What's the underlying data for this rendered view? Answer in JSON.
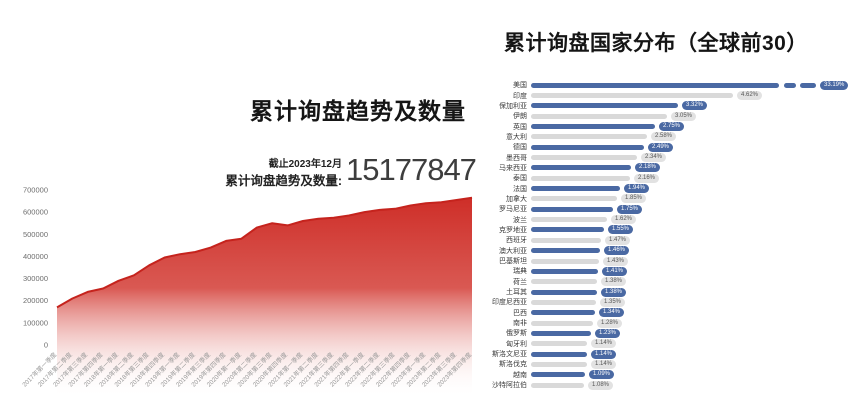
{
  "left_chart": {
    "title": "累计询盘趋势及数量",
    "as_of": "截止2023年12月",
    "total_label": "累计询盘趋势及数量:",
    "total_value": "15177847"
  },
  "right_chart": {
    "title": "累计询盘国家分布（全球前30）"
  },
  "chart_data": [
    {
      "type": "area",
      "title": "累计询盘趋势及数量",
      "x": [
        "2017年第一季度",
        "2017年第二季度",
        "2017年第三季度",
        "2017年第四季度",
        "2018年第一季度",
        "2018年第二季度",
        "2018年第三季度",
        "2018年第四季度",
        "2019年第一季度",
        "2019年第二季度",
        "2019年第三季度",
        "2019年第四季度",
        "2020年第一季度",
        "2020年第二季度",
        "2020年第三季度",
        "2020年第四季度",
        "2021年第一季度",
        "2021年第二季度",
        "2021年第三季度",
        "2021年第四季度",
        "2022年第一季度",
        "2022年第二季度",
        "2022年第三季度",
        "2022年第四季度",
        "2023年第一季度",
        "2023年第二季度",
        "2023年第三季度",
        "2023年第四季度"
      ],
      "values": [
        170000,
        210000,
        240000,
        255000,
        290000,
        315000,
        360000,
        395000,
        410000,
        420000,
        440000,
        470000,
        480000,
        530000,
        550000,
        540000,
        560000,
        570000,
        575000,
        585000,
        600000,
        610000,
        615000,
        630000,
        640000,
        645000,
        655000,
        665000
      ],
      "ylim": [
        0,
        700000
      ],
      "yticks": [
        0,
        100000,
        200000,
        300000,
        400000,
        500000,
        600000,
        700000
      ],
      "grid": false,
      "area_top_color": "#ce2e28",
      "area_mid_color": "#d4423b",
      "fade_to": "#ffffff",
      "stroke_color": "#c5231d"
    },
    {
      "type": "bar",
      "orientation": "horizontal",
      "title": "累计询盘国家分布（全球前30）",
      "categories": [
        "美国",
        "印度",
        "保加利亚",
        "伊朗",
        "英国",
        "意大利",
        "德国",
        "墨西哥",
        "马来西亚",
        "泰国",
        "法国",
        "加拿大",
        "罗马尼亚",
        "波兰",
        "克罗地亚",
        "西班牙",
        "澳大利亚",
        "巴基斯坦",
        "瑞典",
        "荷兰",
        "土耳其",
        "印度尼西亚",
        "巴西",
        "南非",
        "俄罗斯",
        "匈牙利",
        "斯洛文尼亚",
        "斯洛伐克",
        "越南",
        "沙特阿拉伯"
      ],
      "values": [
        33.19,
        4.62,
        3.32,
        3.05,
        2.75,
        2.58,
        2.49,
        2.34,
        2.18,
        2.16,
        1.94,
        1.85,
        1.75,
        1.62,
        1.55,
        1.47,
        1.46,
        1.43,
        1.41,
        1.38,
        1.38,
        1.35,
        1.34,
        1.28,
        1.23,
        1.14,
        1.14,
        1.14,
        1.09,
        1.08
      ],
      "value_labels": [
        "33.19%",
        "4.62%",
        "3.32%",
        "3.05%",
        "2.75%",
        "2.58%",
        "2.49%",
        "2.34%",
        "2.18%",
        "2.16%",
        "1.94%",
        "1.85%",
        "1.75%",
        "1.62%",
        "1.55%",
        "1.47%",
        "1.46%",
        "1.43%",
        "1.41%",
        "1.38%",
        "1.38%",
        "1.35%",
        "1.34%",
        "1.28%",
        "1.23%",
        "1.14%",
        "1.14%",
        "1.14%",
        "1.09%",
        "1.08%"
      ],
      "broken_bar_index": 0,
      "legend": false,
      "colors": {
        "bar_blue": "#4a69a3",
        "bar_gray": "#d9d9d9",
        "pill_gray_bg": "#e2e2e2",
        "pill_gray_text": "#555555",
        "label_text": "#3a3a3a"
      }
    }
  ]
}
